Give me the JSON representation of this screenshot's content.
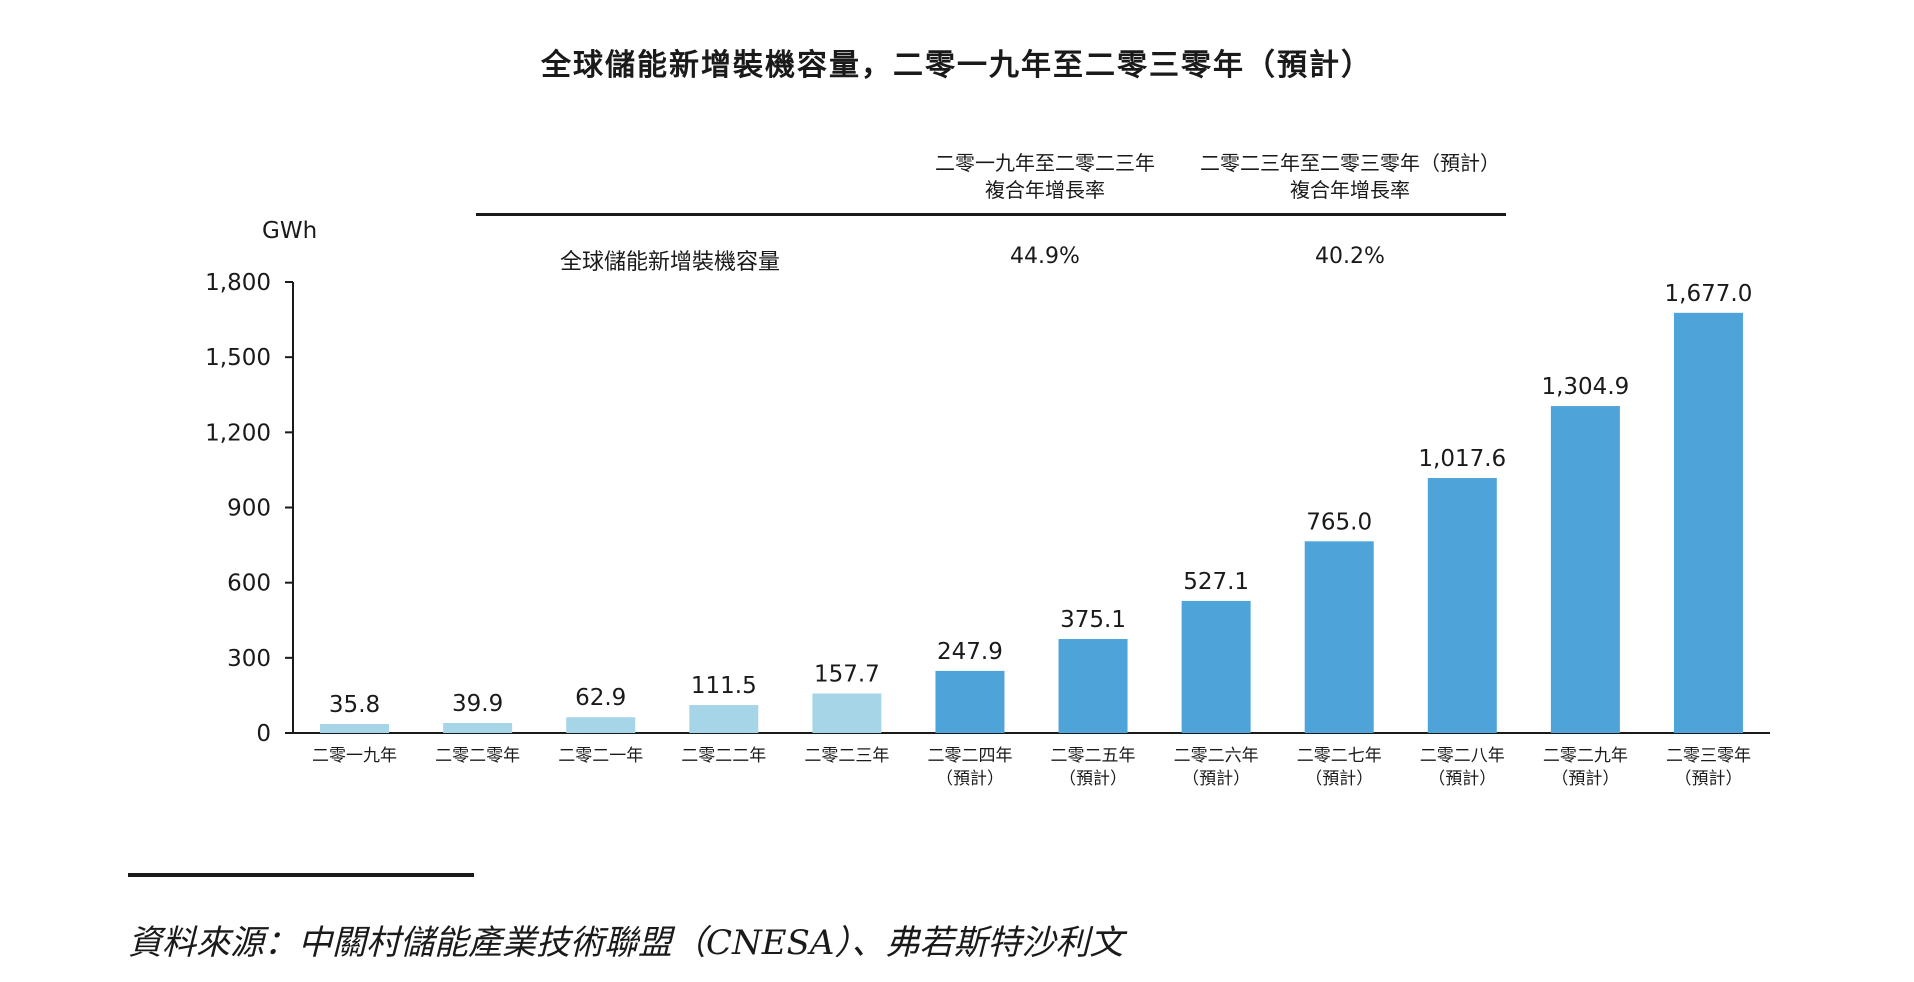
{
  "title": "全球儲能新增裝機容量，二零一九年至二零三零年（預計）",
  "cagr_table": {
    "headers": [
      {
        "line1": "二零一九年至二零二三年",
        "line2": "複合年增長率"
      },
      {
        "line1": "二零二三年至二零三零年（預計）",
        "line2": "複合年增長率"
      }
    ],
    "row_label": "全球儲能新增裝機容量",
    "values": [
      "44.9%",
      "40.2%"
    ]
  },
  "source": "資料來源：中關村儲能產業技術聯盟（CNESA）、弗若斯特沙利文",
  "colors": {
    "historical": "#a6d5e8",
    "forecast": "#4ea3d8",
    "axis": "#1a1a1a"
  },
  "chart_data": {
    "type": "bar",
    "unit": "GWh",
    "ylim": [
      0,
      1800
    ],
    "yticks": [
      "0",
      "300",
      "600",
      "900",
      "1,200",
      "1,500",
      "1,800"
    ],
    "categories": [
      {
        "line1": "二零一九年",
        "line2": ""
      },
      {
        "line1": "二零二零年",
        "line2": ""
      },
      {
        "line1": "二零二一年",
        "line2": ""
      },
      {
        "line1": "二零二二年",
        "line2": ""
      },
      {
        "line1": "二零二三年",
        "line2": ""
      },
      {
        "line1": "二零二四年",
        "line2": "（預計）"
      },
      {
        "line1": "二零二五年",
        "line2": "（預計）"
      },
      {
        "line1": "二零二六年",
        "line2": "（預計）"
      },
      {
        "line1": "二零二七年",
        "line2": "（預計）"
      },
      {
        "line1": "二零二八年",
        "line2": "（預計）"
      },
      {
        "line1": "二零二九年",
        "line2": "（預計）"
      },
      {
        "line1": "二零三零年",
        "line2": "（預計）"
      }
    ],
    "values": [
      35.8,
      39.9,
      62.9,
      111.5,
      157.7,
      247.9,
      375.1,
      527.1,
      765.0,
      1017.6,
      1304.9,
      1677.0
    ],
    "value_labels": [
      "35.8",
      "39.9",
      "62.9",
      "111.5",
      "157.7",
      "247.9",
      "375.1",
      "527.1",
      "765.0",
      "1,017.6",
      "1,304.9",
      "1,677.0"
    ],
    "forecast": [
      false,
      false,
      false,
      false,
      false,
      true,
      true,
      true,
      true,
      true,
      true,
      true
    ]
  }
}
